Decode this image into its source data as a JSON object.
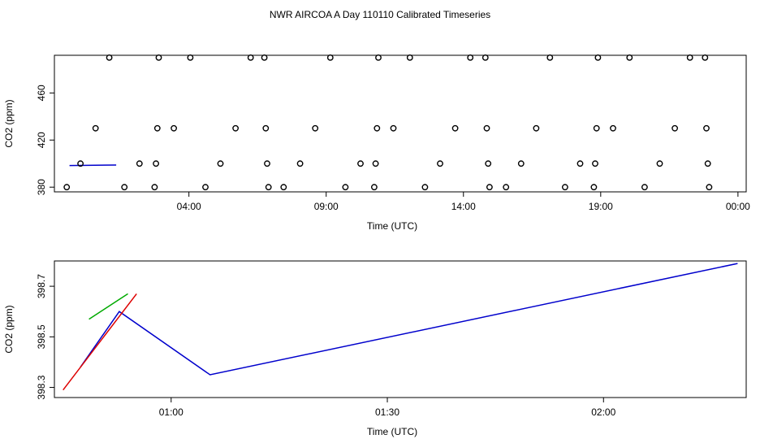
{
  "page_title": "NWR AIRCOA A  Day 110110  Calibrated Timeseries",
  "chart_data": [
    {
      "id": "top",
      "type": "scatter",
      "xlabel": "Time (UTC)",
      "ylabel": "CO2 (ppm)",
      "xlim": [
        -0.9,
        24.3
      ],
      "ylim": [
        376,
        492
      ],
      "x_ticks": [
        {
          "value": 4,
          "label": "04:00"
        },
        {
          "value": 9,
          "label": "09:00"
        },
        {
          "value": 14,
          "label": "14:00"
        },
        {
          "value": 19,
          "label": "19:00"
        },
        {
          "value": 24,
          "label": "00:00"
        }
      ],
      "y_ticks": [
        {
          "value": 380,
          "label": "380"
        },
        {
          "value": 420,
          "label": "420"
        },
        {
          "value": 460,
          "label": "460"
        }
      ],
      "points": [
        {
          "x": -0.45,
          "y": 380
        },
        {
          "x": 0.05,
          "y": 400
        },
        {
          "x": 0.6,
          "y": 430
        },
        {
          "x": 1.1,
          "y": 490
        },
        {
          "x": 1.65,
          "y": 380
        },
        {
          "x": 2.2,
          "y": 400
        },
        {
          "x": 2.75,
          "y": 380
        },
        {
          "x": 2.8,
          "y": 400
        },
        {
          "x": 2.85,
          "y": 430
        },
        {
          "x": 2.9,
          "y": 490
        },
        {
          "x": 3.45,
          "y": 430
        },
        {
          "x": 4.05,
          "y": 490
        },
        {
          "x": 4.6,
          "y": 380
        },
        {
          "x": 5.15,
          "y": 400
        },
        {
          "x": 5.7,
          "y": 430
        },
        {
          "x": 6.25,
          "y": 490
        },
        {
          "x": 6.75,
          "y": 490
        },
        {
          "x": 6.8,
          "y": 430
        },
        {
          "x": 6.85,
          "y": 400
        },
        {
          "x": 6.9,
          "y": 380
        },
        {
          "x": 7.45,
          "y": 380
        },
        {
          "x": 8.05,
          "y": 400
        },
        {
          "x": 8.6,
          "y": 430
        },
        {
          "x": 9.15,
          "y": 490
        },
        {
          "x": 9.7,
          "y": 380
        },
        {
          "x": 10.25,
          "y": 400
        },
        {
          "x": 10.75,
          "y": 380
        },
        {
          "x": 10.8,
          "y": 400
        },
        {
          "x": 10.85,
          "y": 430
        },
        {
          "x": 10.9,
          "y": 490
        },
        {
          "x": 11.45,
          "y": 430
        },
        {
          "x": 12.05,
          "y": 490
        },
        {
          "x": 12.6,
          "y": 380
        },
        {
          "x": 13.15,
          "y": 400
        },
        {
          "x": 13.7,
          "y": 430
        },
        {
          "x": 14.25,
          "y": 490
        },
        {
          "x": 14.8,
          "y": 490
        },
        {
          "x": 14.85,
          "y": 430
        },
        {
          "x": 14.9,
          "y": 400
        },
        {
          "x": 14.95,
          "y": 380
        },
        {
          "x": 15.55,
          "y": 380
        },
        {
          "x": 16.1,
          "y": 400
        },
        {
          "x": 16.65,
          "y": 430
        },
        {
          "x": 17.15,
          "y": 490
        },
        {
          "x": 17.7,
          "y": 380
        },
        {
          "x": 18.25,
          "y": 400
        },
        {
          "x": 18.75,
          "y": 380
        },
        {
          "x": 18.8,
          "y": 400
        },
        {
          "x": 18.85,
          "y": 430
        },
        {
          "x": 18.9,
          "y": 490
        },
        {
          "x": 19.45,
          "y": 430
        },
        {
          "x": 20.05,
          "y": 490
        },
        {
          "x": 20.6,
          "y": 380
        },
        {
          "x": 21.15,
          "y": 400
        },
        {
          "x": 21.7,
          "y": 430
        },
        {
          "x": 22.25,
          "y": 490
        },
        {
          "x": 22.8,
          "y": 490
        },
        {
          "x": 22.85,
          "y": 430
        },
        {
          "x": 22.9,
          "y": 400
        },
        {
          "x": 22.95,
          "y": 380
        }
      ],
      "lines": [
        {
          "color": "#0000cc",
          "x": [
            -0.35,
            1.35
          ],
          "y": [
            398.4,
            398.8
          ]
        }
      ]
    },
    {
      "id": "bottom",
      "type": "line",
      "xlabel": "Time (UTC)",
      "ylabel": "CO2 (ppm)",
      "xlim": [
        0.73,
        2.33
      ],
      "ylim": [
        398.26,
        398.8
      ],
      "x_ticks": [
        {
          "value": 1.0,
          "label": "01:00"
        },
        {
          "value": 1.5,
          "label": "01:30"
        },
        {
          "value": 2.0,
          "label": "02:00"
        }
      ],
      "y_ticks": [
        {
          "value": 398.3,
          "label": "398.3"
        },
        {
          "value": 398.5,
          "label": "398.5"
        },
        {
          "value": 398.7,
          "label": "398.7"
        }
      ],
      "series": [
        {
          "color": "#0000cc",
          "x": [
            0.79,
            0.88,
            1.09,
            2.31
          ],
          "y": [
            398.38,
            398.6,
            398.35,
            398.79
          ]
        },
        {
          "color": "#dd0000",
          "x": [
            0.75,
            0.92
          ],
          "y": [
            398.29,
            398.67
          ]
        },
        {
          "color": "#00aa00",
          "x": [
            0.81,
            0.9
          ],
          "y": [
            398.57,
            398.67
          ]
        }
      ]
    }
  ]
}
